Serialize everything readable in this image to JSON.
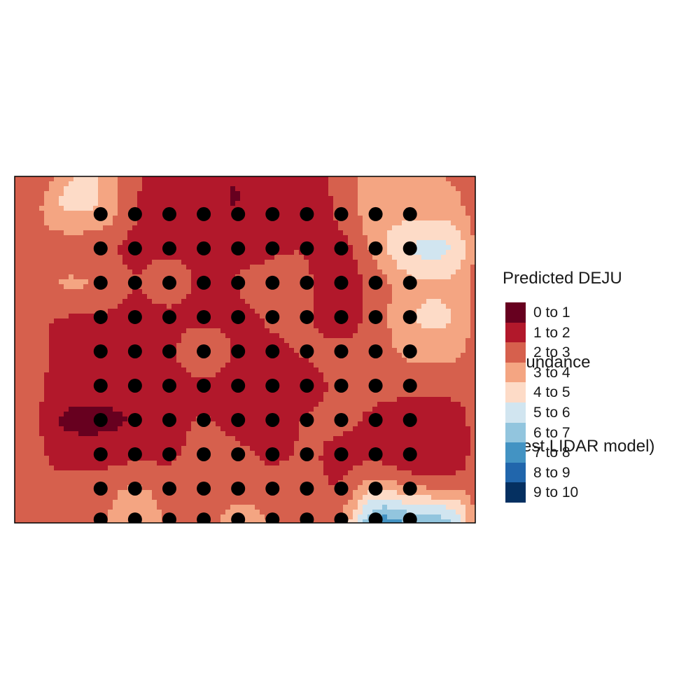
{
  "chart_data": {
    "type": "heatmap",
    "title": "",
    "xlabel": "",
    "ylabel": "",
    "legend": {
      "title_lines": [
        "Predicted DEJU",
        " abundance",
        " (best LIDAR model)"
      ],
      "placement": "right",
      "classes": [
        {
          "label": "0 to 1",
          "color": "#67001F"
        },
        {
          "label": "1 to 2",
          "color": "#B2182B"
        },
        {
          "label": "2 to 3",
          "color": "#D6604D"
        },
        {
          "label": "3 to 4",
          "color": "#F4A582"
        },
        {
          "label": "4 to 5",
          "color": "#FDDBC7"
        },
        {
          "label": "5 to 6",
          "color": "#D1E5F0"
        },
        {
          "label": "6 to 7",
          "color": "#92C5DE"
        },
        {
          "label": "7 to 8",
          "color": "#4393C3"
        },
        {
          "label": "8 to 9",
          "color": "#2166AC"
        },
        {
          "label": "9 to 10",
          "color": "#053061"
        }
      ]
    },
    "grid": false,
    "survey_points": {
      "color": "#000000",
      "xlim": [
        0,
        13.4
      ],
      "ylim": [
        0,
        10.1
      ],
      "x": [
        2.5,
        3.5,
        4.5,
        5.5,
        6.5,
        7.5,
        8.5,
        9.5,
        10.5,
        11.5
      ],
      "y": [
        9,
        8,
        7,
        6,
        5,
        4,
        3,
        2,
        1,
        0.1
      ],
      "values": [
        [
          4.5,
          1.8,
          1.6,
          1.5,
          0.6,
          2.2,
          1.0,
          2.4,
          3.8,
          3.4
        ],
        [
          1.8,
          1.6,
          1.7,
          1.6,
          1.6,
          1.7,
          2.2,
          1.1,
          3.5,
          6.0
        ],
        [
          3.6,
          1.7,
          3.2,
          1.6,
          2.2,
          2.6,
          2.2,
          1.2,
          2.2,
          3.6
        ],
        [
          1.7,
          1.6,
          1.6,
          1.5,
          1.6,
          2.2,
          2.2,
          1.2,
          2.3,
          4.5
        ],
        [
          1.6,
          1.6,
          1.6,
          3.6,
          1.6,
          1.8,
          2.2,
          2.3,
          2.4,
          3.4
        ],
        [
          1.6,
          1.6,
          1.6,
          1.6,
          1.5,
          1.5,
          1.5,
          2.2,
          2.3,
          2.4
        ],
        [
          0.5,
          0.8,
          1.6,
          2.3,
          1.5,
          1.6,
          2.2,
          2.3,
          1.8,
          1.2
        ],
        [
          1.5,
          1.6,
          1.7,
          2.4,
          2.3,
          1.6,
          2.2,
          1.6,
          1.6,
          0.9
        ],
        [
          2.4,
          3.5,
          2.3,
          2.5,
          2.6,
          2.4,
          2.5,
          1.5,
          3.7,
          2.3
        ],
        [
          2.5,
          4.6,
          2.6,
          2.5,
          3.8,
          3.0,
          2.6,
          2.4,
          9.2,
          7.5
        ]
      ]
    },
    "background_value": 2.5
  }
}
